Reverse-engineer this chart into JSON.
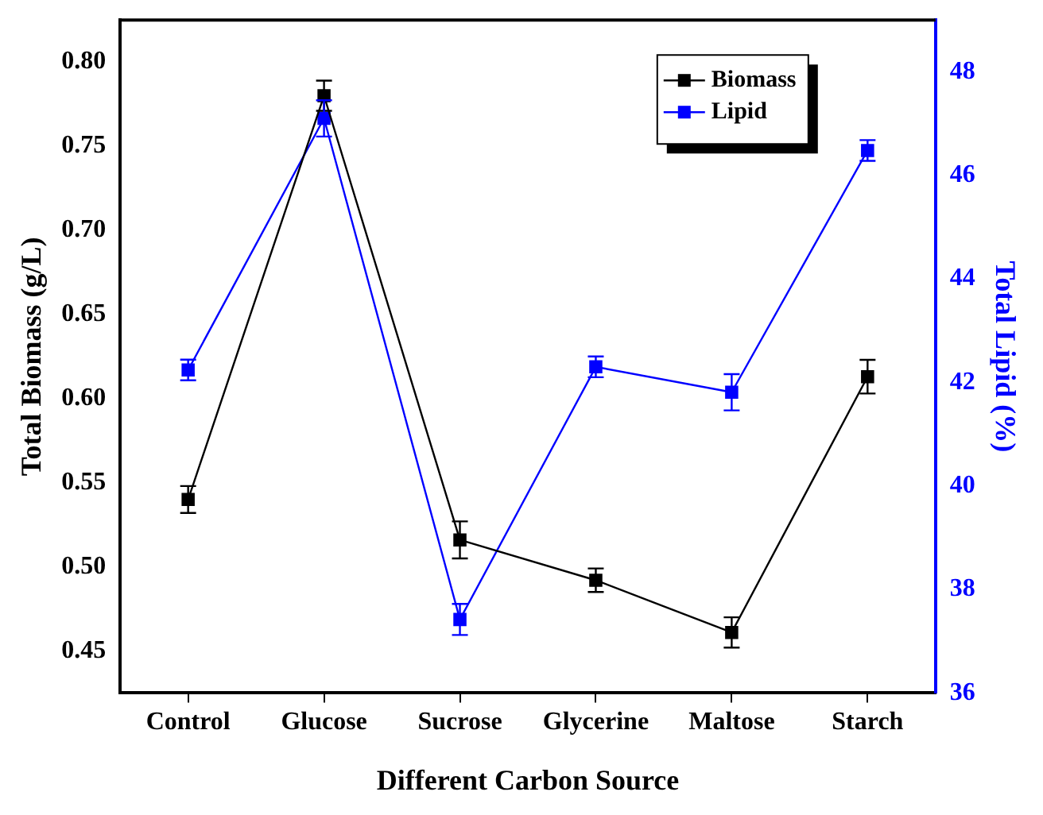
{
  "chart_data": {
    "type": "line",
    "xlabel": "Different Carbon Source",
    "ylabel": "Total Biomass (g/L)",
    "y2label": "Total Lipid (%)",
    "categories": [
      "Control",
      "Glucose",
      "Sucrose",
      "Glycerine",
      "Maltose",
      "Starch"
    ],
    "series": [
      {
        "name": "Biomass",
        "color": "#000000",
        "values": [
          0.54,
          0.78,
          0.516,
          0.492,
          0.461,
          0.613
        ],
        "errors": [
          0.008,
          0.009,
          0.011,
          0.007,
          0.009,
          0.01
        ]
      },
      {
        "name": "Lipid",
        "color": "#0000ff",
        "axis": "y2",
        "values": [
          42.24,
          47.1,
          37.42,
          42.3,
          41.81,
          46.48
        ],
        "errors": [
          0.2,
          0.35,
          0.3,
          0.2,
          0.35,
          0.2
        ]
      }
    ],
    "ylim": [
      0.425,
      0.825
    ],
    "yticks": [
      0.45,
      {
        "value": 0.5,
        "label": "0.50"
      },
      0.55,
      {
        "value": 0.6,
        "label": "0.60"
      },
      0.65,
      {
        "value": 0.7,
        "label": "0.70"
      },
      0.75,
      {
        "value": 0.8,
        "label": "0.80"
      }
    ],
    "y2lim": [
      36,
      49
    ],
    "y2ticks": [
      36,
      38,
      40,
      42,
      44,
      46,
      48
    ],
    "marker": "square",
    "line_style": "solid",
    "legend": "top right",
    "grid": false
  }
}
